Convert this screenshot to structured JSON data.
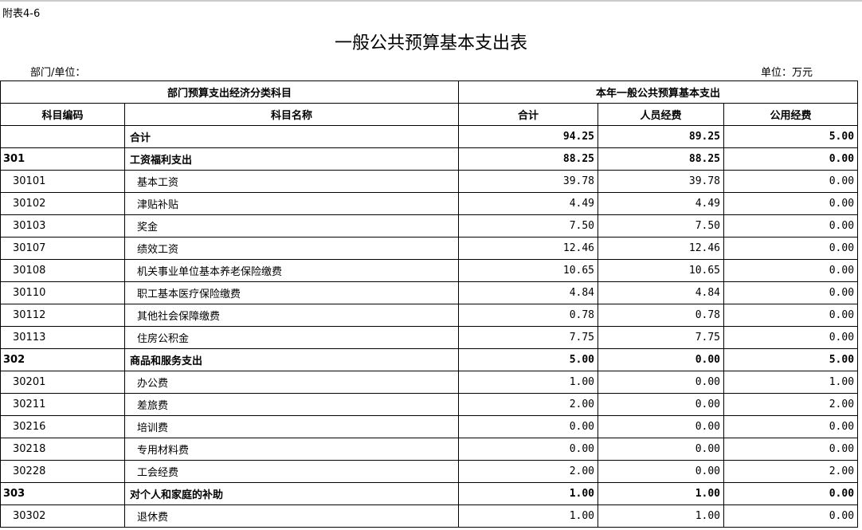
{
  "note": "附表4-6",
  "title": "一般公共预算基本支出表",
  "dept_label": "部门/单位：",
  "unit_label": "单位：万元",
  "headers": {
    "group1": "部门预算支出经济分类科目",
    "group2": "本年一般公共预算基本支出",
    "code": "科目编码",
    "name": "科目名称",
    "total": "合计",
    "personnel": "人员经费",
    "public": "公用经费"
  },
  "rows": [
    {
      "code": "",
      "name": "合计",
      "total": "94.25",
      "personnel": "89.25",
      "public": "5.00",
      "level": 0
    },
    {
      "code": "301",
      "name": "工资福利支出",
      "total": "88.25",
      "personnel": "88.25",
      "public": "0.00",
      "level": 0
    },
    {
      "code": "30101",
      "name": "基本工资",
      "total": "39.78",
      "personnel": "39.78",
      "public": "0.00",
      "level": 1
    },
    {
      "code": "30102",
      "name": "津贴补贴",
      "total": "4.49",
      "personnel": "4.49",
      "public": "0.00",
      "level": 1
    },
    {
      "code": "30103",
      "name": "奖金",
      "total": "7.50",
      "personnel": "7.50",
      "public": "0.00",
      "level": 1
    },
    {
      "code": "30107",
      "name": "绩效工资",
      "total": "12.46",
      "personnel": "12.46",
      "public": "0.00",
      "level": 1
    },
    {
      "code": "30108",
      "name": "机关事业单位基本养老保险缴费",
      "total": "10.65",
      "personnel": "10.65",
      "public": "0.00",
      "level": 1
    },
    {
      "code": "30110",
      "name": "职工基本医疗保险缴费",
      "total": "4.84",
      "personnel": "4.84",
      "public": "0.00",
      "level": 1
    },
    {
      "code": "30112",
      "name": "其他社会保障缴费",
      "total": "0.78",
      "personnel": "0.78",
      "public": "0.00",
      "level": 1
    },
    {
      "code": "30113",
      "name": "住房公积金",
      "total": "7.75",
      "personnel": "7.75",
      "public": "0.00",
      "level": 1
    },
    {
      "code": "302",
      "name": "商品和服务支出",
      "total": "5.00",
      "personnel": "0.00",
      "public": "5.00",
      "level": 0
    },
    {
      "code": "30201",
      "name": "办公费",
      "total": "1.00",
      "personnel": "0.00",
      "public": "1.00",
      "level": 1
    },
    {
      "code": "30211",
      "name": "差旅费",
      "total": "2.00",
      "personnel": "0.00",
      "public": "2.00",
      "level": 1
    },
    {
      "code": "30216",
      "name": "培训费",
      "total": "0.00",
      "personnel": "0.00",
      "public": "0.00",
      "level": 1
    },
    {
      "code": "30218",
      "name": "专用材料费",
      "total": "0.00",
      "personnel": "0.00",
      "public": "0.00",
      "level": 1
    },
    {
      "code": "30228",
      "name": "工会经费",
      "total": "2.00",
      "personnel": "0.00",
      "public": "2.00",
      "level": 1
    },
    {
      "code": "303",
      "name": "对个人和家庭的补助",
      "total": "1.00",
      "personnel": "1.00",
      "public": "0.00",
      "level": 0
    },
    {
      "code": "30302",
      "name": "退休费",
      "total": "1.00",
      "personnel": "1.00",
      "public": "0.00",
      "level": 1
    }
  ]
}
